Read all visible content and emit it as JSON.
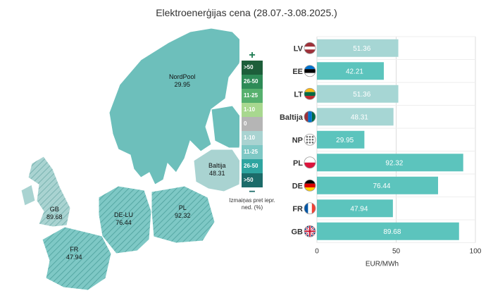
{
  "title": "Elektroenerģijas cena (28.07.-3.08.2025.)",
  "map": {
    "legend": {
      "plus": "+",
      "minus": "−",
      "bins": [
        {
          "label": ">50",
          "color": "#1d5e3a"
        },
        {
          "label": "26-50",
          "color": "#2e8b57"
        },
        {
          "label": "11-25",
          "color": "#56b06e"
        },
        {
          "label": "1-10",
          "color": "#a8d88f"
        },
        {
          "label": "0",
          "color": "#b5b5b5"
        },
        {
          "label": "1-10",
          "color": "#a9d3d1"
        },
        {
          "label": "11-25",
          "color": "#7ec8c5"
        },
        {
          "label": "26-50",
          "color": "#2ea5a0"
        },
        {
          "label": ">50",
          "color": "#1c6b69"
        }
      ],
      "caption": "Izmaiņas pret iepr. ned. (%)"
    },
    "regions": [
      {
        "name": "NordPool",
        "value": "29.95"
      },
      {
        "name": "Baltija",
        "value": "48.31"
      },
      {
        "name": "GB",
        "value": "89.68"
      },
      {
        "name": "DE-LU",
        "value": "76.44"
      },
      {
        "name": "PL",
        "value": "92.32"
      },
      {
        "name": "FR",
        "value": "47.94"
      }
    ]
  },
  "chart_data": {
    "type": "bar",
    "orientation": "horizontal",
    "categories": [
      "LV",
      "EE",
      "LT",
      "Baltija",
      "NP",
      "PL",
      "DE",
      "FR",
      "GB"
    ],
    "values": [
      51.36,
      42.21,
      51.36,
      48.31,
      29.95,
      92.32,
      76.44,
      47.94,
      89.68
    ],
    "value_labels": [
      "51.36",
      "42.21",
      "51.36",
      "48.31",
      "29.95",
      "92.32",
      "76.44",
      "47.94",
      "89.68"
    ],
    "bar_colors": [
      "#a6d6d4",
      "#5cc4bd",
      "#a6d6d4",
      "#a6d6d4",
      "#5cc4bd",
      "#5cc4bd",
      "#5cc4bd",
      "#5cc4bd",
      "#5cc4bd"
    ],
    "xlim": [
      0,
      100
    ],
    "xticks": [
      0,
      50,
      100
    ],
    "xtick_labels": [
      "0",
      "50",
      "100"
    ],
    "xlabel": "EUR/MWh",
    "grid": true
  }
}
